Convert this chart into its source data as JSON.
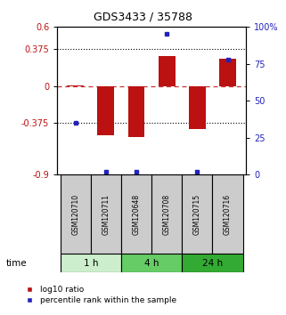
{
  "title": "GDS3433 / 35788",
  "samples": [
    "GSM120710",
    "GSM120711",
    "GSM120648",
    "GSM120708",
    "GSM120715",
    "GSM120716"
  ],
  "log10_ratio": [
    0.01,
    -0.5,
    -0.52,
    0.3,
    -0.44,
    0.28
  ],
  "percentile_rank": [
    35,
    2,
    2,
    95,
    2,
    78
  ],
  "bar_color": "#bb1111",
  "dot_color": "#2222bb",
  "ylim_left": [
    -0.9,
    0.6
  ],
  "ylim_right": [
    0,
    100
  ],
  "yticks_left": [
    -0.9,
    -0.375,
    0,
    0.375,
    0.6
  ],
  "yticks_right": [
    0,
    25,
    50,
    75,
    100
  ],
  "ytick_labels_left": [
    "-0.9",
    "-0.375",
    "0",
    "0.375",
    "0.6"
  ],
  "ytick_labels_right": [
    "0",
    "25",
    "50",
    "75",
    "100%"
  ],
  "hlines": [
    0.375,
    -0.375
  ],
  "dashed_hline": 0.0,
  "bar_width": 0.55,
  "background_color": "#ffffff",
  "group_colors": [
    "#cceecc",
    "#66cc66",
    "#33aa33"
  ],
  "group_defs": [
    [
      0,
      1,
      "1 h"
    ],
    [
      2,
      3,
      "4 h"
    ],
    [
      4,
      5,
      "24 h"
    ]
  ],
  "legend_items": [
    {
      "label": "log10 ratio",
      "color": "#bb1111"
    },
    {
      "label": "percentile rank within the sample",
      "color": "#2222bb"
    }
  ],
  "sample_box_color": "#cccccc",
  "time_label": "time"
}
